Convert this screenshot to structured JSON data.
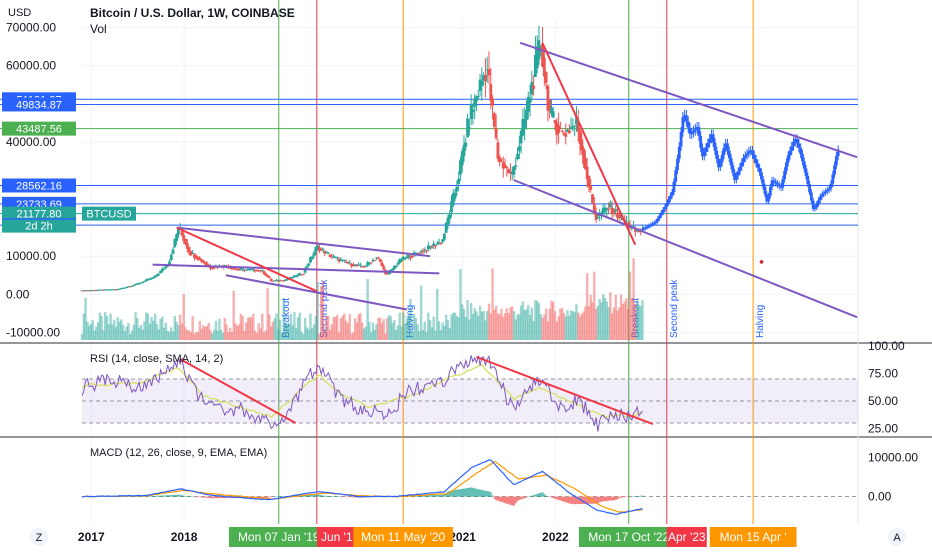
{
  "header": {
    "title": "Bitcoin / U.S. Dollar, 1W, COINBASE",
    "sub": "Vol",
    "currency": "USD"
  },
  "nav": {
    "left_letter": "Z",
    "right_letter": "A"
  },
  "colors": {
    "up": "#26a69a",
    "down": "#ef5350",
    "projection": "#2962ff",
    "channel": "#7e57c2",
    "trend": "#f23645",
    "green_marker": "#4caf50",
    "red_marker": "#f23645",
    "orange_marker": "#ff9800",
    "rsi_line": "#7e57c2",
    "rsi_ma": "#d4e157",
    "macd_line": "#2962ff",
    "signal_line": "#ff9800"
  },
  "chart_data": [
    {
      "type": "candlestick",
      "title": "Bitcoin / U.S. Dollar, 1W, COINBASE",
      "ylabel": "USD",
      "ylim": [
        -12000,
        72000
      ],
      "y_ticks": [
        "70000.00",
        "60000.00",
        "40000.00",
        "10000.00",
        "0.00",
        "-10000.00"
      ],
      "y_tick_values": [
        70000,
        60000,
        40000,
        10000,
        0,
        -10000
      ],
      "x_ticks": [
        "2017",
        "2018",
        "2021",
        "2022"
      ],
      "x_tick_years": [
        2017,
        2018,
        2021,
        2022
      ],
      "price_path_xy": [
        [
          2016.9,
          1000
        ],
        [
          2017.3,
          1300
        ],
        [
          2017.5,
          2600
        ],
        [
          2017.7,
          4500
        ],
        [
          2017.85,
          8000
        ],
        [
          2017.96,
          17500
        ],
        [
          2018.08,
          11000
        ],
        [
          2018.2,
          9000
        ],
        [
          2018.3,
          7000
        ],
        [
          2018.45,
          7500
        ],
        [
          2018.6,
          6500
        ],
        [
          2018.85,
          6300
        ],
        [
          2018.96,
          3500
        ],
        [
          2019.1,
          3700
        ],
        [
          2019.3,
          5500
        ],
        [
          2019.45,
          12500
        ],
        [
          2019.6,
          10000
        ],
        [
          2019.8,
          8000
        ],
        [
          2019.95,
          7200
        ],
        [
          2020.1,
          9800
        ],
        [
          2020.2,
          5000
        ],
        [
          2020.35,
          9000
        ],
        [
          2020.6,
          11500
        ],
        [
          2020.8,
          14000
        ],
        [
          2020.95,
          28000
        ],
        [
          2021.1,
          47000
        ],
        [
          2021.28,
          60000
        ],
        [
          2021.4,
          36000
        ],
        [
          2021.55,
          31000
        ],
        [
          2021.7,
          47000
        ],
        [
          2021.86,
          66000
        ],
        [
          2021.96,
          47000
        ],
        [
          2022.1,
          42000
        ],
        [
          2022.25,
          45000
        ],
        [
          2022.45,
          20000
        ],
        [
          2022.6,
          23000
        ],
        [
          2022.75,
          19500
        ],
        [
          2022.88,
          16500
        ],
        [
          2022.95,
          17000
        ]
      ],
      "projection_path_xy": [
        [
          2022.95,
          17000
        ],
        [
          2023.1,
          19000
        ],
        [
          2023.2,
          23000
        ],
        [
          2023.28,
          27000
        ],
        [
          2023.35,
          38000
        ],
        [
          2023.4,
          48000
        ],
        [
          2023.47,
          42000
        ],
        [
          2023.55,
          44000
        ],
        [
          2023.6,
          36000
        ],
        [
          2023.7,
          42000
        ],
        [
          2023.78,
          33000
        ],
        [
          2023.85,
          40000
        ],
        [
          2023.95,
          30000
        ],
        [
          2024.05,
          36000
        ],
        [
          2024.12,
          38000
        ],
        [
          2024.22,
          32000
        ],
        [
          2024.3,
          24000
        ],
        [
          2024.35,
          30000
        ],
        [
          2024.45,
          28000
        ],
        [
          2024.52,
          36000
        ],
        [
          2024.6,
          41000
        ],
        [
          2024.65,
          38000
        ],
        [
          2024.72,
          31000
        ],
        [
          2024.8,
          22000
        ],
        [
          2024.88,
          26000
        ],
        [
          2024.98,
          28000
        ],
        [
          2025.06,
          38000
        ]
      ],
      "horizontal_levels": [
        {
          "value": 51181.27,
          "label": "51181.27",
          "color": "#2962ff"
        },
        {
          "value": 49834.87,
          "label": "49834.87",
          "color": "#2962ff"
        },
        {
          "value": 43487.56,
          "label": "43487.56",
          "color": "#4caf50"
        },
        {
          "value": 28562.16,
          "label": "28562.16",
          "color": "#2962ff"
        },
        {
          "value": 23733.69,
          "label": "23733.69",
          "color": "#2962ff"
        },
        {
          "value": 21177.8,
          "label": "21177.80",
          "color": "#26a69a"
        },
        {
          "value": 18145.21,
          "label": "18145.21",
          "color": "#2962ff"
        }
      ],
      "current_price": {
        "value": 21177.8,
        "label": "21177.80",
        "countdown": "2d 2h",
        "tag": "BTCUSD"
      },
      "vertical_markers": [
        {
          "x": 2019.02,
          "color": "#4caf50",
          "label": "Breakout",
          "date_label": "Mon 07 Jan '19"
        },
        {
          "x": 2019.43,
          "color": "#f23645",
          "label": "Second peak",
          "date_label": "Jun '1"
        },
        {
          "x": 2020.36,
          "color": "#ff9800",
          "label": "Halving",
          "date_label": "Mon 11 May '20"
        },
        {
          "x": 2022.79,
          "color": "#4caf50",
          "label": "Breakout",
          "date_label": "Mon 17 Oct '22"
        },
        {
          "x": 2023.2,
          "color": "#f23645",
          "label": "Second peak",
          "date_label": "Apr '23"
        },
        {
          "x": 2024.13,
          "color": "#ff9800",
          "label": "Halving",
          "date_label": "Mon 15 Apr '"
        }
      ],
      "channel_lines": [
        {
          "from": [
            2017.66,
            7800
          ],
          "to": [
            2020.75,
            5500
          ],
          "color": "#7e57c2"
        },
        {
          "from": [
            2017.92,
            17500
          ],
          "to": [
            2020.65,
            10000
          ],
          "color": "#7e57c2"
        },
        {
          "from": [
            2018.45,
            5000
          ],
          "to": [
            2020.4,
            -4000
          ],
          "color": "#7e57c2"
        },
        {
          "from": [
            2021.62,
            66000
          ],
          "to": [
            2025.25,
            36000
          ],
          "color": "#7e57c2"
        },
        {
          "from": [
            2021.55,
            30000
          ],
          "to": [
            2025.25,
            -6000
          ],
          "color": "#7e57c2"
        },
        {
          "from": [
            2017.92,
            17500
          ],
          "to": [
            2019.43,
            800
          ],
          "color": "#f23645"
        },
        {
          "from": [
            2021.86,
            66000
          ],
          "to": [
            2022.86,
            13000
          ],
          "color": "#f23645"
        }
      ]
    },
    {
      "type": "line",
      "title": "RSI (14, close, SMA, 14, 2)",
      "ylim": [
        20,
        100
      ],
      "y_ticks": [
        "100.00",
        "75.00",
        "50.00",
        "25.00"
      ],
      "y_tick_values": [
        100,
        75,
        50,
        25
      ],
      "band": [
        30,
        70
      ],
      "series": [
        {
          "name": "RSI",
          "values_xy": [
            [
              2016.9,
              62
            ],
            [
              2017.2,
              70
            ],
            [
              2017.5,
              60
            ],
            [
              2017.75,
              72
            ],
            [
              2017.95,
              88
            ],
            [
              2018.1,
              60
            ],
            [
              2018.3,
              45
            ],
            [
              2018.6,
              42
            ],
            [
              2018.9,
              30
            ],
            [
              2019.1,
              38
            ],
            [
              2019.45,
              85
            ],
            [
              2019.7,
              50
            ],
            [
              2019.95,
              42
            ],
            [
              2020.2,
              40
            ],
            [
              2020.45,
              60
            ],
            [
              2020.7,
              62
            ],
            [
              2020.95,
              80
            ],
            [
              2021.15,
              90
            ],
            [
              2021.3,
              84
            ],
            [
              2021.55,
              40
            ],
            [
              2021.7,
              62
            ],
            [
              2021.86,
              70
            ],
            [
              2022.05,
              42
            ],
            [
              2022.25,
              52
            ],
            [
              2022.45,
              28
            ],
            [
              2022.6,
              40
            ],
            [
              2022.8,
              36
            ],
            [
              2022.95,
              42
            ]
          ]
        },
        {
          "name": "RSI-based MA",
          "values_xy": [
            [
              2016.9,
              64
            ],
            [
              2017.5,
              66
            ],
            [
              2017.95,
              80
            ],
            [
              2018.2,
              55
            ],
            [
              2018.6,
              44
            ],
            [
              2018.95,
              36
            ],
            [
              2019.45,
              74
            ],
            [
              2019.7,
              55
            ],
            [
              2020.0,
              45
            ],
            [
              2020.45,
              55
            ],
            [
              2020.95,
              74
            ],
            [
              2021.2,
              84
            ],
            [
              2021.55,
              52
            ],
            [
              2021.86,
              62
            ],
            [
              2022.2,
              48
            ],
            [
              2022.5,
              36
            ],
            [
              2022.8,
              37
            ],
            [
              2022.95,
              40
            ]
          ]
        }
      ],
      "trend_lines": [
        {
          "from": [
            2017.96,
            88
          ],
          "to": [
            2019.2,
            30
          ]
        },
        {
          "from": [
            2021.15,
            90
          ],
          "to": [
            2023.05,
            29
          ]
        }
      ]
    },
    {
      "type": "line",
      "title": "MACD (12, 26, close, 9, EMA, EMA)",
      "ylim": [
        -6500,
        14500
      ],
      "y_ticks": [
        "10000.00",
        "0.00"
      ],
      "y_tick_values": [
        10000,
        0
      ],
      "series": [
        {
          "name": "MACD",
          "values_xy": [
            [
              2016.9,
              0
            ],
            [
              2017.6,
              300
            ],
            [
              2017.96,
              2000
            ],
            [
              2018.3,
              300
            ],
            [
              2018.9,
              -800
            ],
            [
              2019.45,
              1300
            ],
            [
              2019.9,
              0
            ],
            [
              2020.3,
              100
            ],
            [
              2020.8,
              1200
            ],
            [
              2021.1,
              7500
            ],
            [
              2021.3,
              9500
            ],
            [
              2021.55,
              3000
            ],
            [
              2021.86,
              6500
            ],
            [
              2022.15,
              1000
            ],
            [
              2022.45,
              -3500
            ],
            [
              2022.65,
              -4500
            ],
            [
              2022.95,
              -3000
            ]
          ]
        },
        {
          "name": "Signal",
          "values_xy": [
            [
              2016.9,
              0
            ],
            [
              2017.6,
              200
            ],
            [
              2017.99,
              1600
            ],
            [
              2018.35,
              600
            ],
            [
              2018.95,
              -600
            ],
            [
              2019.5,
              900
            ],
            [
              2019.95,
              200
            ],
            [
              2020.35,
              0
            ],
            [
              2020.85,
              800
            ],
            [
              2021.15,
              6000
            ],
            [
              2021.35,
              9000
            ],
            [
              2021.6,
              4500
            ],
            [
              2021.9,
              5500
            ],
            [
              2022.2,
              2200
            ],
            [
              2022.5,
              -2500
            ],
            [
              2022.7,
              -4000
            ],
            [
              2022.95,
              -3300
            ]
          ]
        }
      ]
    }
  ]
}
